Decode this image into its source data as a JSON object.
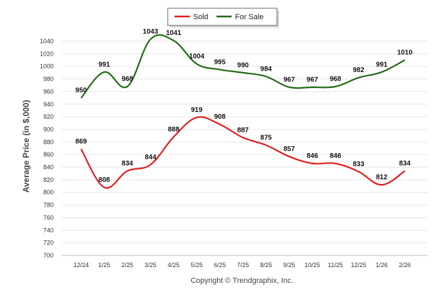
{
  "chart_data": {
    "type": "line",
    "title": "",
    "xlabel": "",
    "ylabel": "Average Price (in $,000)",
    "ylim": [
      700,
      1040
    ],
    "ytick_step": 20,
    "categories": [
      "12/24",
      "1/25",
      "2/25",
      "3/25",
      "4/25",
      "5/25",
      "6/25",
      "7/25",
      "8/25",
      "9/25",
      "10/25",
      "11/25",
      "12/25",
      "1/26",
      "2/26"
    ],
    "series": [
      {
        "name": "Sold",
        "color": "#e31b1b",
        "values": [
          869,
          808,
          834,
          844,
          888,
          919,
          908,
          887,
          875,
          857,
          846,
          846,
          833,
          812,
          834
        ]
      },
      {
        "name": "For Sale",
        "color": "#1e6b12",
        "values": [
          950,
          991,
          968,
          1043,
          1041,
          1004,
          995,
          990,
          984,
          967,
          967,
          968,
          982,
          991,
          1010
        ]
      }
    ],
    "legend_position": "top-center",
    "grid": true
  },
  "footer": {
    "copyright": "Copyright © Trendgraphix, Inc."
  }
}
